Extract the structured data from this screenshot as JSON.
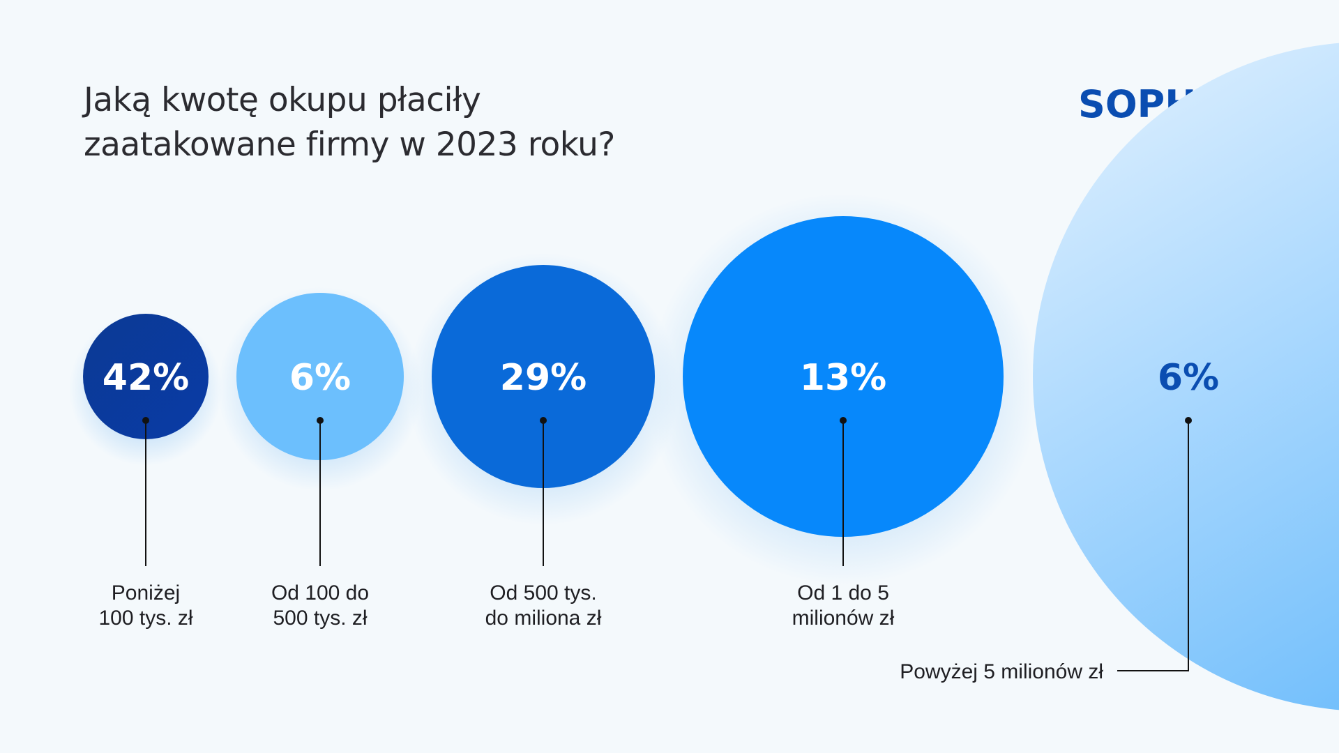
{
  "title": {
    "line1": "Jaką kwotę okupu płaciły",
    "line2": "zaatakowane firmy w 2023 roku?"
  },
  "brand": {
    "logo_text": "SOPHOS",
    "color": "#0a4db1"
  },
  "chart_data": {
    "type": "bubble",
    "title": "Jaką kwotę okupu płaciły zaatakowane firmy w 2023 roku?",
    "unit": "%",
    "categories": [
      [
        "Poniżej",
        "100 tys. zł"
      ],
      [
        "Od 100 do",
        "500 tys. zł"
      ],
      [
        "Od 500 tys.",
        "do miliona zł"
      ],
      [
        "Od 1 do 5",
        "milionów zł"
      ],
      [
        "Powyżej 5 milionów zł"
      ]
    ],
    "values": [
      42,
      6,
      29,
      13,
      6
    ],
    "value_labels": [
      "42%",
      "6%",
      "29%",
      "13%",
      "6%"
    ],
    "colors": [
      "#0a3a9e",
      "#6cbffd",
      "#0a6ad9",
      "#0788fb",
      "#a9d7fd"
    ],
    "label_colors": [
      "#ffffff",
      "#ffffff",
      "#ffffff",
      "#ffffff",
      "#0a4db1"
    ],
    "note": "bubble size increases with the payment amount bracket, not with the percentage"
  }
}
